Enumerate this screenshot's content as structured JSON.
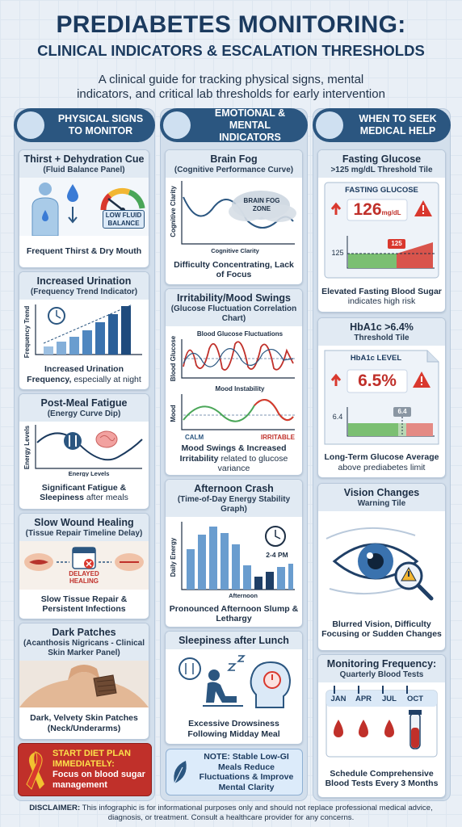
{
  "header": {
    "title": "PREDIABETES MONITORING:",
    "subtitle": "CLINICAL INDICATORS & ESCALATION THRESHOLDS",
    "intro": "A clinical guide for tracking physical signs, mental indicators, and critical lab thresholds for early intervention"
  },
  "columns": [
    {
      "heading": "PHYSICAL SIGNS TO MONITOR",
      "cards": [
        {
          "title": "Thirst + Dehydration Cue",
          "subtitle": "(Fluid Balance Panel)",
          "badge": "LOW FLUID BALANCE",
          "caption": "Frequent Thirst & Dry Mouth"
        },
        {
          "title": "Increased Urination",
          "subtitle": "(Frequency Trend Indicator)",
          "y_label": "Frequency Trend",
          "caption": "Increased Urination Frequency,",
          "caption_note": "especially at night"
        },
        {
          "title": "Post-Meal Fatigue",
          "subtitle": "(Energy Curve Dip)",
          "y_label": "Energy Levels",
          "x_label": "Energy Levels",
          "caption": "Significant Fatigue & Sleepiness",
          "caption_note": "after meals"
        },
        {
          "title": "Slow Wound Healing",
          "subtitle": "(Tissue Repair Timeline Delay)",
          "badge": "DELAYED HEALING",
          "caption": "Slow Tissue Repair & Persistent Infections"
        },
        {
          "title": "Dark Patches",
          "subtitle": "(Acanthosis Nigricans - Clinical Skin Marker Panel)",
          "caption": "Dark, Velvety Skin Patches (Neck/Underarms)"
        }
      ],
      "footer": {
        "title": "START DIET PLAN IMMEDIATELY:",
        "text": "Focus on blood sugar management"
      }
    },
    {
      "heading": "EMOTIONAL & MENTAL INDICATORS",
      "cards": [
        {
          "title": "Brain Fog",
          "subtitle": "(Cognitive Performance Curve)",
          "y_label": "Cognitive Clarity",
          "zone": "BRAIN FOG ZONE",
          "x_label": "Cognitive Clarity",
          "caption": "Difficulty Concentrating, Lack of Focus"
        },
        {
          "title": "Irritability/Mood Swings",
          "subtitle": "(Glucose Fluctuation Correlation Chart)",
          "chart1": "Blood Glucose Fluctuations",
          "y1_label": "Blood Glucose",
          "chart2": "Mood Instability",
          "y2_label": "Mood",
          "low": "CALM",
          "high": "IRRITABLE",
          "caption": "Mood Swings & Increased Irritability",
          "caption_note": "related to glucose variance"
        },
        {
          "title": "Afternoon Crash",
          "subtitle": "(Time-of-Day Energy Stability Graph)",
          "y_label": "Daily Energy",
          "time": "2-4 PM",
          "x_label": "Afternoon",
          "caption": "Pronounced Afternoon Slump & Lethargy"
        },
        {
          "title": "Sleepiness after Lunch",
          "caption": "Excessive Drowsiness Following Midday Meal"
        }
      ],
      "footer": {
        "label": "NOTE:",
        "text": "Stable Low-GI Meals Reduce Fluctuations & Improve Mental Clarity"
      }
    },
    {
      "heading": "WHEN TO SEEK MEDICAL HELP",
      "cards": [
        {
          "title": "Fasting Glucose",
          "subtitle": ">125 mg/dL Threshold Tile",
          "panel": "FASTING GLUCOSE",
          "reading": "126",
          "unit": "mg/dL",
          "threshold": "125",
          "marker": "125",
          "caption": "Elevated Fasting Blood Sugar",
          "caption_note": "indicates high risk"
        },
        {
          "title": "HbA1c >6.4%",
          "subtitle": "Threshold Tile",
          "panel": "HbA1c LEVEL",
          "reading": "6.5%",
          "threshold": "6.4",
          "marker": "6.4",
          "caption": "Long-Term Glucose Average",
          "caption_note": "above prediabetes limit"
        },
        {
          "title": "Vision Changes",
          "subtitle": "Warning Tile",
          "caption": "Blurred Vision, Difficulty Focusing or Sudden Changes"
        },
        {
          "title": "Monitoring Frequency:",
          "subtitle": "Quarterly Blood Tests",
          "months": [
            "JAN",
            "APR",
            "JUL",
            "OCT"
          ],
          "caption": "Schedule Comprehensive Blood Tests Every 3 Months"
        }
      ]
    }
  ],
  "disclaimer": {
    "label": "DISCLAIMER:",
    "text": "This infographic is for informational purposes only and should not replace professional medical advice, diagnosis, or treatment. Consult a healthcare provider for any concerns."
  }
}
